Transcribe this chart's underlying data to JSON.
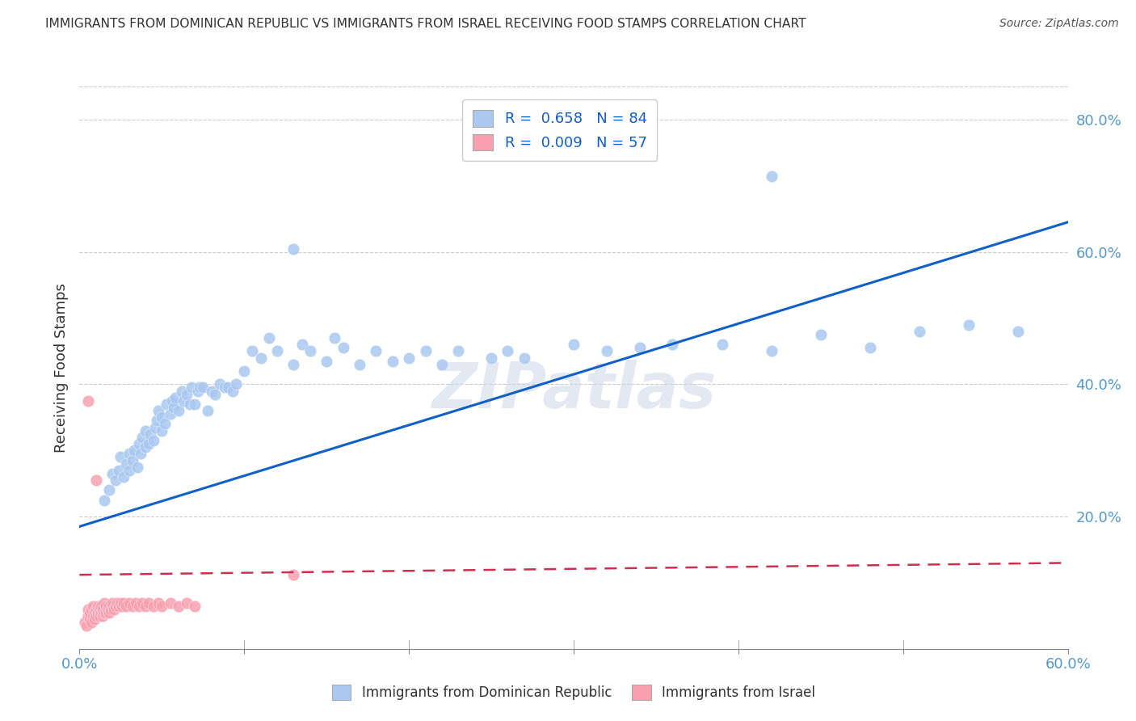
{
  "title": "IMMIGRANTS FROM DOMINICAN REPUBLIC VS IMMIGRANTS FROM ISRAEL RECEIVING FOOD STAMPS CORRELATION CHART",
  "source": "Source: ZipAtlas.com",
  "ylabel": "Receiving Food Stamps",
  "xlim": [
    0.0,
    0.6
  ],
  "ylim": [
    0.0,
    0.85
  ],
  "ytick_vals": [
    0.2,
    0.4,
    0.6,
    0.8
  ],
  "ytick_labels": [
    "20.0%",
    "40.0%",
    "60.0%",
    "80.0%"
  ],
  "xtick_vals": [
    0.0,
    0.1,
    0.2,
    0.3,
    0.4,
    0.5,
    0.6
  ],
  "xtick_labels_ends": [
    "0.0%",
    "60.0%"
  ],
  "blue_color": "#aac8f0",
  "pink_color": "#f8a0b0",
  "blue_line_color": "#1060c8",
  "pink_line_color": "#cc3050",
  "axis_label_color": "#5599cc",
  "watermark": "ZIPatlas",
  "blue_trendline_y0": 0.185,
  "blue_trendline_y1": 0.645,
  "pink_trendline_y0": 0.112,
  "pink_trendline_y1": 0.13,
  "background_color": "#ffffff",
  "grid_color": "#cccccc",
  "legend_text_color": "#1060c8",
  "blue_dots_x": [
    0.015,
    0.018,
    0.02,
    0.022,
    0.024,
    0.025,
    0.027,
    0.028,
    0.03,
    0.03,
    0.032,
    0.033,
    0.035,
    0.036,
    0.037,
    0.038,
    0.04,
    0.04,
    0.042,
    0.043,
    0.045,
    0.046,
    0.047,
    0.048,
    0.05,
    0.05,
    0.052,
    0.053,
    0.055,
    0.056,
    0.057,
    0.058,
    0.06,
    0.062,
    0.063,
    0.065,
    0.067,
    0.068,
    0.07,
    0.072,
    0.073,
    0.075,
    0.078,
    0.08,
    0.082,
    0.085,
    0.088,
    0.09,
    0.093,
    0.095,
    0.1,
    0.105,
    0.11,
    0.115,
    0.12,
    0.13,
    0.135,
    0.14,
    0.15,
    0.155,
    0.16,
    0.17,
    0.18,
    0.19,
    0.2,
    0.21,
    0.22,
    0.23,
    0.25,
    0.26,
    0.27,
    0.3,
    0.32,
    0.34,
    0.36,
    0.39,
    0.42,
    0.45,
    0.48,
    0.51,
    0.54,
    0.57,
    0.42,
    0.13
  ],
  "blue_dots_y": [
    0.225,
    0.24,
    0.265,
    0.255,
    0.27,
    0.29,
    0.26,
    0.28,
    0.27,
    0.295,
    0.285,
    0.3,
    0.275,
    0.31,
    0.295,
    0.32,
    0.305,
    0.33,
    0.31,
    0.325,
    0.315,
    0.335,
    0.345,
    0.36,
    0.33,
    0.35,
    0.34,
    0.37,
    0.355,
    0.375,
    0.365,
    0.38,
    0.36,
    0.39,
    0.375,
    0.385,
    0.37,
    0.395,
    0.37,
    0.39,
    0.395,
    0.395,
    0.36,
    0.39,
    0.385,
    0.4,
    0.395,
    0.395,
    0.39,
    0.4,
    0.42,
    0.45,
    0.44,
    0.47,
    0.45,
    0.43,
    0.46,
    0.45,
    0.435,
    0.47,
    0.455,
    0.43,
    0.45,
    0.435,
    0.44,
    0.45,
    0.43,
    0.45,
    0.44,
    0.45,
    0.44,
    0.46,
    0.45,
    0.455,
    0.46,
    0.46,
    0.45,
    0.475,
    0.455,
    0.48,
    0.49,
    0.48,
    0.715,
    0.605
  ],
  "pink_dots_x": [
    0.003,
    0.004,
    0.005,
    0.005,
    0.006,
    0.006,
    0.007,
    0.007,
    0.008,
    0.008,
    0.009,
    0.009,
    0.01,
    0.01,
    0.011,
    0.011,
    0.012,
    0.012,
    0.013,
    0.013,
    0.014,
    0.014,
    0.015,
    0.015,
    0.016,
    0.016,
    0.017,
    0.018,
    0.018,
    0.019,
    0.02,
    0.02,
    0.021,
    0.022,
    0.023,
    0.024,
    0.025,
    0.026,
    0.027,
    0.028,
    0.03,
    0.032,
    0.034,
    0.036,
    0.038,
    0.04,
    0.042,
    0.045,
    0.048,
    0.05,
    0.055,
    0.06,
    0.065,
    0.07,
    0.13,
    0.005,
    0.01
  ],
  "pink_dots_y": [
    0.04,
    0.035,
    0.05,
    0.06,
    0.045,
    0.055,
    0.04,
    0.06,
    0.05,
    0.065,
    0.045,
    0.055,
    0.05,
    0.06,
    0.055,
    0.065,
    0.05,
    0.06,
    0.055,
    0.065,
    0.05,
    0.06,
    0.055,
    0.07,
    0.055,
    0.065,
    0.06,
    0.055,
    0.065,
    0.06,
    0.065,
    0.07,
    0.06,
    0.065,
    0.07,
    0.065,
    0.07,
    0.065,
    0.07,
    0.065,
    0.07,
    0.065,
    0.07,
    0.065,
    0.07,
    0.065,
    0.07,
    0.065,
    0.07,
    0.065,
    0.07,
    0.065,
    0.07,
    0.065,
    0.112,
    0.375,
    0.255
  ]
}
